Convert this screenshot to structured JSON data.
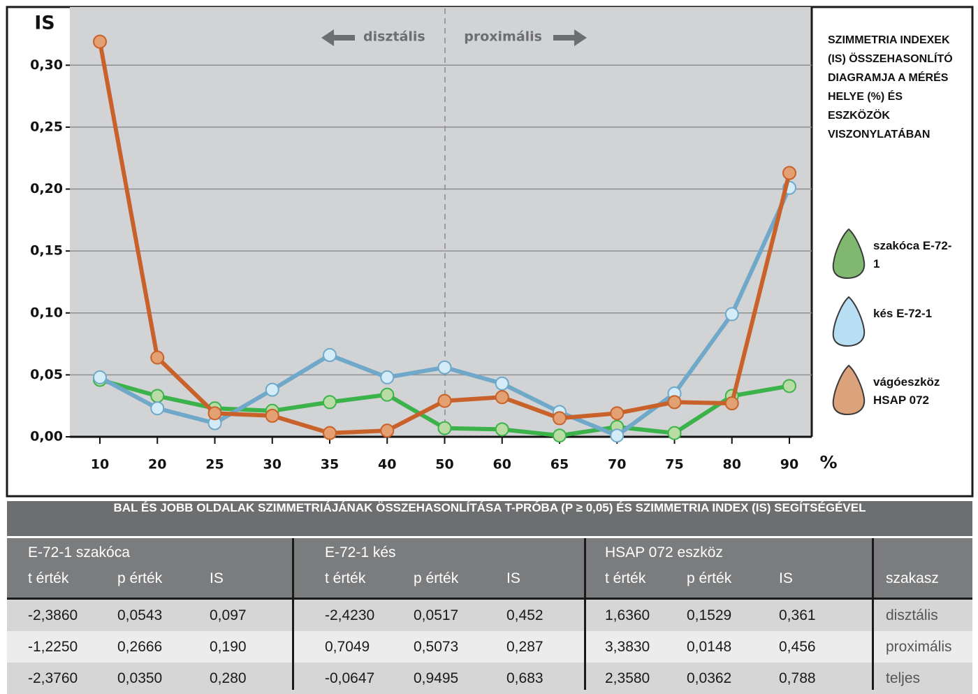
{
  "chart_data": {
    "type": "line",
    "y_label": "IS",
    "x_label": "%",
    "annotations": [
      "disztális",
      "proximális"
    ],
    "legend_title": "SZIMMETRIA INDEXEK (IS) ÖSSZEHASONLÍTÓ DIAGRAMJA A MÉRÉS HELYE (%) ÉS ESZKÖZÖK VISZONYLATÁBAN",
    "categories": [
      10,
      20,
      25,
      30,
      35,
      40,
      50,
      60,
      65,
      70,
      75,
      80,
      90
    ],
    "series": [
      {
        "name": "szakóca E-72-1",
        "color": "#3cb34a",
        "marker_color": "#b9dca5",
        "legend_color": "#80b86f",
        "values": [
          0.046,
          0.033,
          0.023,
          0.021,
          0.028,
          0.034,
          0.007,
          0.006,
          0.001,
          0.008,
          0.003,
          0.033,
          0.041
        ]
      },
      {
        "name": "kés E-72-1",
        "color": "#6fa8c8",
        "marker_color": "#d4ecf8",
        "legend_color": "#b8def4",
        "values": [
          0.048,
          0.023,
          0.011,
          0.038,
          0.066,
          0.048,
          0.056,
          0.043,
          0.02,
          0.001,
          0.035,
          0.099,
          0.201
        ]
      },
      {
        "name": "vágóeszköz HSAP 072",
        "color": "#c8622a",
        "marker_color": "#e2a073",
        "legend_color": "#dca27c",
        "values": [
          0.319,
          0.064,
          0.019,
          0.017,
          0.003,
          0.005,
          0.029,
          0.032,
          0.015,
          0.019,
          0.028,
          0.027,
          0.213
        ]
      }
    ],
    "ylim": [
      0,
      0.347
    ],
    "yticks": [
      {
        "value": 0,
        "label": "0,00"
      },
      {
        "value": 0.05,
        "label": "0,05"
      },
      {
        "value": 0.1,
        "label": "0,10"
      },
      {
        "value": 0.15,
        "label": "0,15"
      },
      {
        "value": 0.2,
        "label": "0,20"
      },
      {
        "value": 0.25,
        "label": "0,25"
      },
      {
        "value": 0.3,
        "label": "0,30"
      }
    ],
    "grid": true
  },
  "table": {
    "title": "BAL ÉS JOBB OLDALAK SZIMMETRIÁJÁNAK ÖSSZEHASONLÍTÁSA T-PRÓBA (P ≥ 0,05) ÉS SZIMMETRIA INDEX (IS) SEGÍTSÉGÉVEL",
    "groups": [
      "E-72-1 szakóca",
      "E-72-1 kés",
      "HSAP 072 eszköz"
    ],
    "columns": [
      "t érték",
      "p érték",
      "IS",
      "t érték",
      "p érték",
      "IS",
      "t érték",
      "p érték",
      "IS",
      "szakasz"
    ],
    "rows": [
      [
        "-2,3860",
        "0,0543",
        "0,097",
        "-2,4230",
        "0,0517",
        "0,452",
        "1,6360",
        "0,1529",
        "0,361",
        "disztális"
      ],
      [
        "-1,2250",
        "0,2666",
        "0,190",
        "0,7049",
        "0,5073",
        "0,287",
        "3,3830",
        "0,0148",
        "0,456",
        "proximális"
      ],
      [
        "-2,3760",
        "0,0350",
        "0,280",
        "-0,0647",
        "0,9495",
        "0,683",
        "2,3580",
        "0,0362",
        "0,788",
        "teljes"
      ]
    ]
  }
}
